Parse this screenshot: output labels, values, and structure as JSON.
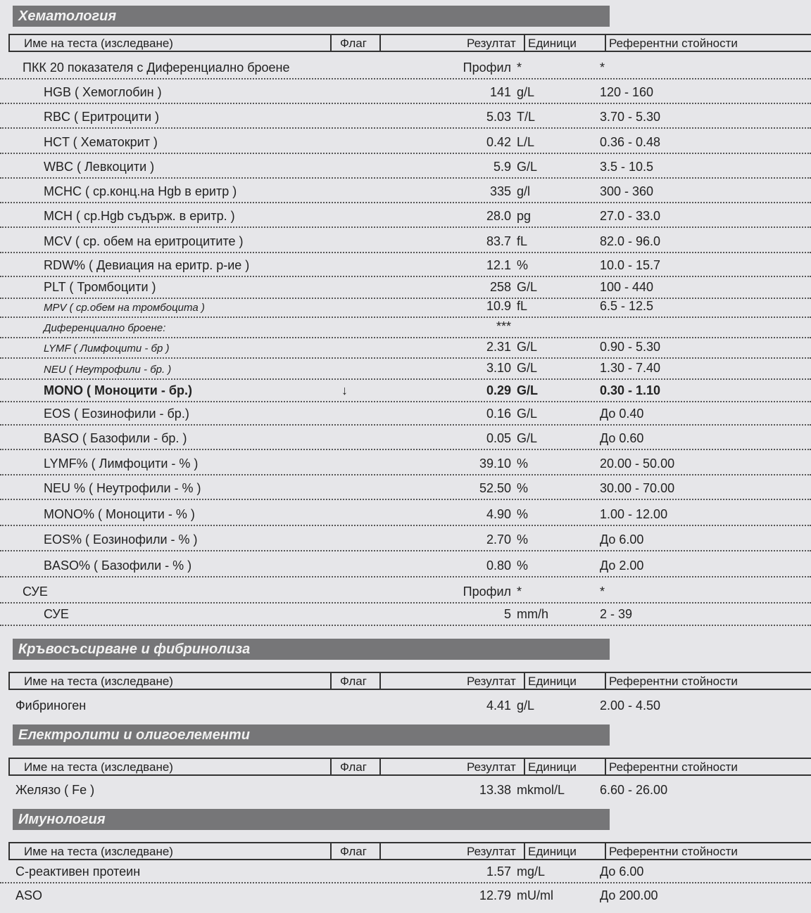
{
  "header": {
    "name": "Име на теста (изследване)",
    "flag": "Флаг",
    "result": "Резултат",
    "units": "Единици",
    "ref": "Референтни стойности"
  },
  "sections": [
    {
      "title": "Хематология",
      "rows": [
        {
          "name": "ПКК 20 показателя с Диференциално броене",
          "result": "Профил",
          "unit": "*",
          "ref": "*",
          "indent": 0
        },
        {
          "name": "HGB ( Хемоглобин )",
          "result": "141",
          "unit": "g/L",
          "ref": "120 - 160"
        },
        {
          "name": "RBC ( Еритроцити )",
          "result": "5.03",
          "unit": "T/L",
          "ref": "3.70 - 5.30"
        },
        {
          "name": "HCT ( Хематокрит )",
          "result": "0.42",
          "unit": "L/L",
          "ref": "0.36 - 0.48"
        },
        {
          "name": "WBC ( Левкоцити )",
          "result": "5.9",
          "unit": "G/L",
          "ref": "3.5 - 10.5"
        },
        {
          "name": "MCHC ( ср.конц.на Hgb в еритр )",
          "result": "335",
          "unit": "g/l",
          "ref": "300 - 360"
        },
        {
          "name": "MCH ( ср.Hgb съдърж. в еритр. )",
          "result": "28.0",
          "unit": "pg",
          "ref": "27.0 - 33.0"
        },
        {
          "name": "MCV ( ср. обем на еритроцитите )",
          "result": "83.7",
          "unit": "fL",
          "ref": "82.0 - 96.0"
        },
        {
          "name": "RDW% ( Девиация на еритр. р-ие )",
          "result": "12.1",
          "unit": "%",
          "ref": "10.0 - 15.7"
        },
        {
          "name": "PLT ( Тромбоцити )",
          "result": "258",
          "unit": "G/L",
          "ref": "100 - 440"
        },
        {
          "name": "MPV ( ср.обем на тромбоцита )",
          "result": "10.9",
          "unit": "fL",
          "ref": "6.5 - 12.5",
          "small": true
        },
        {
          "name": "Диференциално броене:",
          "result": "***",
          "unit": "",
          "ref": "",
          "small": true
        },
        {
          "name": "LYMF ( Лимфоцити - бр )",
          "result": "2.31",
          "unit": "G/L",
          "ref": "0.90 - 5.30",
          "small": true
        },
        {
          "name": "NEU ( Неутрофили - бр. )",
          "result": "3.10",
          "unit": "G/L",
          "ref": "1.30 - 7.40",
          "small": true
        },
        {
          "name": "MONO ( Моноцити - бр.)",
          "flag": "↓",
          "result": "0.29",
          "unit": "G/L",
          "ref": "0.30 - 1.10",
          "bold": true
        },
        {
          "name": "EOS ( Еозинофили - бр.)",
          "result": "0.16",
          "unit": "G/L",
          "ref": "До 0.40"
        },
        {
          "name": "BASO ( Базофили - бр. )",
          "result": "0.05",
          "unit": "G/L",
          "ref": "До 0.60"
        },
        {
          "name": "LYMF% ( Лимфоцити - % )",
          "result": "39.10",
          "unit": "%",
          "ref": "20.00 - 50.00"
        },
        {
          "name": "NEU % ( Неутрофили - % )",
          "result": "52.50",
          "unit": "%",
          "ref": "30.00 - 70.00"
        },
        {
          "name": "MONO% ( Моноцити -  % )",
          "result": "4.90",
          "unit": "%",
          "ref": "1.00 - 12.00"
        },
        {
          "name": "EOS% ( Еозинофили -  % )",
          "result": "2.70",
          "unit": "%",
          "ref": "До 6.00"
        },
        {
          "name": "BASO% ( Базофили -  % )",
          "result": "0.80",
          "unit": "%",
          "ref": "До 2.00"
        },
        {
          "name": "СУЕ",
          "result": "Профил",
          "unit": "*",
          "ref": "*",
          "indent": 0
        },
        {
          "name": "СУЕ",
          "result": "5",
          "unit": "mm/h",
          "ref": "2 - 39"
        }
      ]
    },
    {
      "title": "Кръвосъсирване и фибринолиза",
      "rows": [
        {
          "name": "Фибриноген",
          "result": "4.41",
          "unit": "g/L",
          "ref": "2.00 - 4.50",
          "indent": 0
        }
      ]
    },
    {
      "title": "Електролити и олигоелементи",
      "rows": [
        {
          "name": "Желязо ( Fe )",
          "result": "13.38",
          "unit": "mkmol/L",
          "ref": "6.60 - 26.00",
          "indent": 0
        }
      ]
    },
    {
      "title": "Имунология",
      "rows": [
        {
          "name": "С-реактивен протеин",
          "result": "1.57",
          "unit": "mg/L",
          "ref": "До 6.00",
          "indent": 0
        },
        {
          "name": "ASO",
          "result": "12.79",
          "unit": "mU/ml",
          "ref": "До 200.00",
          "indent": 0
        }
      ]
    }
  ]
}
